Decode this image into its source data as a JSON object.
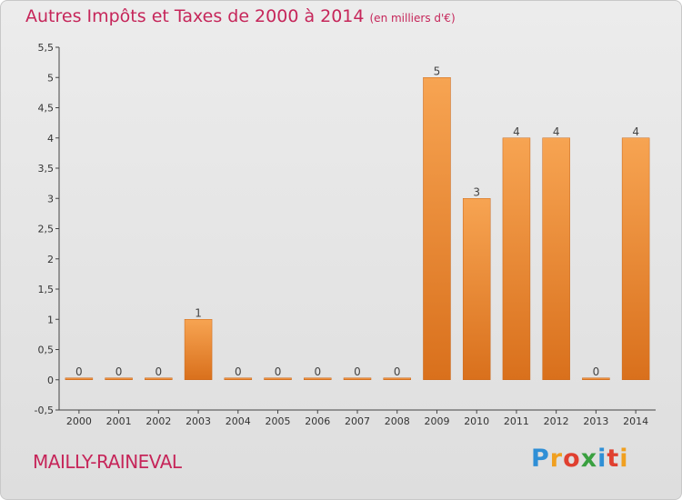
{
  "chart_data": {
    "type": "bar",
    "title": "Autres Impôts et Taxes de 2000 à 2014",
    "subtitle": "(en milliers d'€)",
    "categories": [
      "2000",
      "2001",
      "2002",
      "2003",
      "2004",
      "2005",
      "2006",
      "2007",
      "2008",
      "2009",
      "2010",
      "2011",
      "2012",
      "2013",
      "2014"
    ],
    "values": [
      0,
      0,
      0,
      1,
      0,
      0,
      0,
      0,
      0,
      5,
      3,
      4,
      4,
      0,
      4
    ],
    "data_labels": [
      "0",
      "0",
      "0",
      "1",
      "0",
      "0",
      "0",
      "0",
      "0",
      "5",
      "3",
      "4",
      "4",
      "0",
      "4"
    ],
    "yticks": [
      -0.5,
      0,
      0.5,
      1,
      1.5,
      2,
      2.5,
      3,
      3.5,
      4,
      4.5,
      5,
      5.5
    ],
    "ytick_labels": [
      "-0,5",
      "0",
      "0,5",
      "1",
      "1,5",
      "2",
      "2,5",
      "3",
      "3,5",
      "4",
      "4,5",
      "5",
      "5,5"
    ],
    "ylim": [
      -0.5,
      5.5
    ],
    "xlabel": "",
    "ylabel": "",
    "grid": false,
    "bar_color": "#f08c2e"
  },
  "footer": {
    "commune": "MAILLY-RAINEVAL",
    "logo_letters": [
      "P",
      "r",
      "o",
      "x",
      "i",
      "t",
      "i"
    ],
    "logo_colors": [
      "#2f8fd6",
      "#f0a020",
      "#e04030",
      "#3aa040",
      "#2f8fd6",
      "#e04030",
      "#f0a020"
    ]
  },
  "colors": {
    "title": "#c6265a",
    "axis": "#444444"
  }
}
